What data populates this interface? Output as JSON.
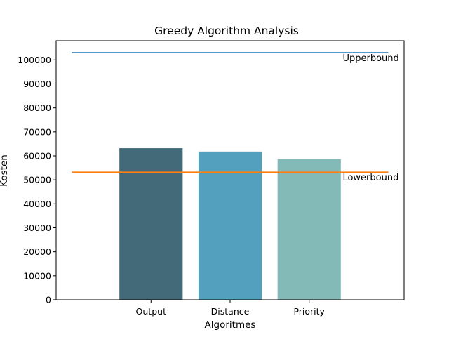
{
  "chart_data": {
    "type": "bar",
    "title": "Greedy Algorithm Analysis",
    "xlabel": "Algoritmes",
    "ylabel": "Kosten",
    "categories": [
      "Output",
      "Distance",
      "Priority"
    ],
    "values": [
      63200,
      61800,
      58600
    ],
    "bar_colors": [
      "#436A79",
      "#53A0BE",
      "#83BAB8"
    ],
    "ylim": [
      0,
      108000
    ],
    "yticks": [
      0,
      10000,
      20000,
      30000,
      40000,
      50000,
      60000,
      70000,
      80000,
      90000,
      100000
    ],
    "grid": false,
    "reference_lines": [
      {
        "label": "Upperbound",
        "value": 103000,
        "color": "#1f77b4"
      },
      {
        "label": "Lowerbound",
        "value": 53200,
        "color": "#ff7f0e"
      }
    ]
  }
}
